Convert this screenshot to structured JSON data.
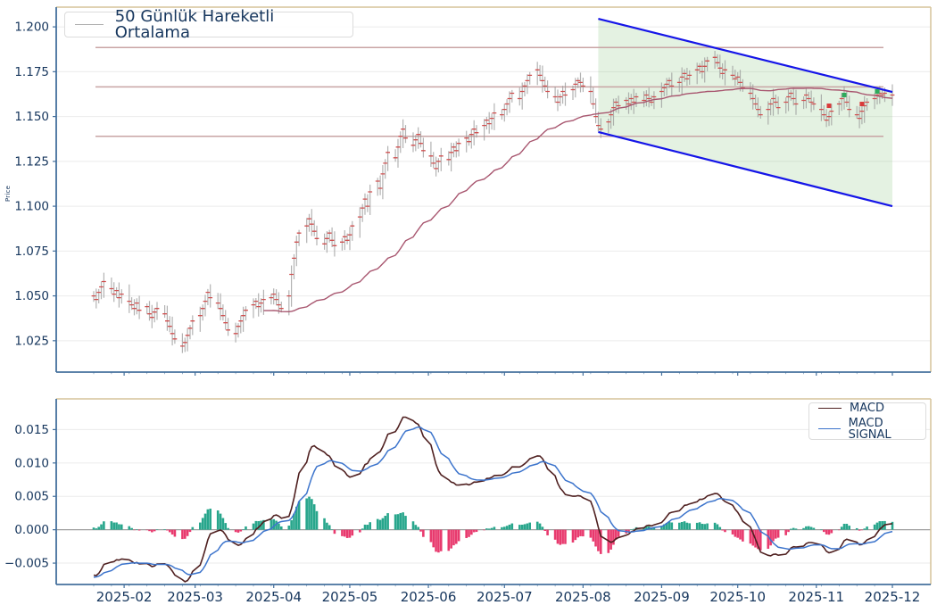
{
  "main_chart": {
    "ylabel": "Price",
    "legend_label": "50 Günlük Hareketli Ortalama",
    "ylim": [
      1.0075,
      1.211
    ],
    "y_ticks": [
      {
        "value": 1.025,
        "label": "1.025"
      },
      {
        "value": 1.05,
        "label": "1.050"
      },
      {
        "value": 1.075,
        "label": "1.075"
      },
      {
        "value": 1.1,
        "label": "1.100"
      },
      {
        "value": 1.125,
        "label": "1.125"
      },
      {
        "value": 1.15,
        "label": "1.150"
      },
      {
        "value": 1.175,
        "label": "1.175"
      },
      {
        "value": 1.2,
        "label": "1.200"
      }
    ]
  },
  "macd_panel": {
    "legend_macd_label": "MACD",
    "legend_signal_label": "MACD SIGNAL",
    "ylim": [
      -0.0082,
      0.0196
    ],
    "y_ticks": [
      {
        "value": -0.005,
        "label": "−0.005"
      },
      {
        "value": 0.0,
        "label": "0.000"
      },
      {
        "value": 0.005,
        "label": "0.005"
      },
      {
        "value": 0.01,
        "label": "0.010"
      },
      {
        "value": 0.015,
        "label": "0.015"
      }
    ]
  },
  "chart_data": {
    "type": "candlestick",
    "title": "",
    "xlabel": "",
    "ylabel": "Price",
    "start_date": "2025-01-20",
    "frequency": "weekdays",
    "close": [
      1.05,
      1.048,
      1.052,
      1.055,
      1.058,
      1.054,
      1.051,
      1.053,
      1.049,
      1.051,
      1.047,
      1.045,
      1.043,
      1.046,
      1.042,
      1.044,
      1.04,
      1.038,
      1.041,
      1.043,
      1.04,
      1.036,
      1.033,
      1.029,
      1.026,
      1.022,
      1.024,
      1.028,
      1.032,
      1.036,
      1.039,
      1.043,
      1.047,
      1.052,
      1.049,
      1.046,
      1.043,
      1.039,
      1.035,
      1.031,
      1.029,
      1.033,
      1.036,
      1.039,
      1.042,
      1.045,
      1.047,
      1.044,
      1.046,
      1.048,
      1.049,
      1.051,
      1.048,
      1.045,
      1.043,
      1.05,
      1.062,
      1.071,
      1.08,
      1.085,
      1.089,
      1.093,
      1.09,
      1.086,
      1.082,
      1.079,
      1.082,
      1.085,
      1.081,
      1.078,
      1.08,
      1.083,
      1.081,
      1.084,
      1.089,
      1.094,
      1.099,
      1.104,
      1.1,
      1.108,
      1.114,
      1.11,
      1.118,
      1.124,
      1.13,
      1.127,
      1.133,
      1.139,
      1.143,
      1.138,
      1.134,
      1.137,
      1.14,
      1.135,
      1.131,
      1.128,
      1.124,
      1.121,
      1.125,
      1.128,
      1.126,
      1.13,
      1.133,
      1.131,
      1.135,
      1.138,
      1.136,
      1.14,
      1.143,
      1.141,
      1.145,
      1.148,
      1.146,
      1.149,
      1.152,
      1.151,
      1.154,
      1.157,
      1.16,
      1.163,
      1.16,
      1.164,
      1.167,
      1.17,
      1.173,
      1.176,
      1.173,
      1.17,
      1.167,
      1.164,
      1.161,
      1.158,
      1.161,
      1.164,
      1.162,
      1.165,
      1.168,
      1.17,
      1.169,
      1.167,
      1.164,
      1.157,
      1.15,
      1.145,
      1.143,
      1.147,
      1.151,
      1.155,
      1.158,
      1.156,
      1.159,
      1.157,
      1.16,
      1.158,
      1.161,
      1.159,
      1.162,
      1.16,
      1.158,
      1.161,
      1.164,
      1.166,
      1.168,
      1.17,
      1.167,
      1.169,
      1.172,
      1.174,
      1.171,
      1.173,
      1.176,
      1.178,
      1.175,
      1.178,
      1.181,
      1.183,
      1.18,
      1.177,
      1.174,
      1.176,
      1.173,
      1.171,
      1.172,
      1.169,
      1.166,
      1.163,
      1.16,
      1.157,
      1.154,
      1.151,
      1.154,
      1.157,
      1.16,
      1.158,
      1.155,
      1.158,
      1.161,
      1.163,
      1.16,
      1.157,
      1.159,
      1.162,
      1.16,
      1.158,
      1.157,
      1.154,
      1.151,
      1.148,
      1.15,
      1.153,
      1.157,
      1.16,
      1.162,
      1.158,
      1.154,
      1.151,
      1.149,
      1.153,
      1.156,
      1.158,
      1.16,
      1.162,
      1.163,
      1.162,
      1.163,
      1.162
    ],
    "bar_range_pattern": [
      0.006,
      0.009,
      0.004,
      0.007,
      0.011,
      0.005,
      0.008,
      0.004,
      0.01,
      0.006,
      0.012,
      0.005,
      0.007
    ],
    "indicators": {
      "ma_window": 50,
      "macd": {
        "fast": 12,
        "slow": 26,
        "signal": 9
      },
      "seeds": {
        "ema_fast": 1.0562,
        "ema_slow": 1.063,
        "signal": -0.0072
      }
    },
    "hlines": [
      1.1885,
      1.1665,
      1.139
    ],
    "channel": {
      "start_date": "2025-08-07",
      "end_date": "2025-12-01",
      "top_start": 1.2045,
      "top_end": 1.1637,
      "bottom_start": 1.1414,
      "bottom_end": 1.1
    },
    "signals": {
      "sell": [
        {
          "date": "2025-11-06",
          "price": 1.156
        },
        {
          "date": "2025-11-19",
          "price": 1.157
        }
      ],
      "buy": [
        {
          "date": "2025-11-12",
          "price": 1.162
        },
        {
          "date": "2025-11-25",
          "price": 1.164
        }
      ]
    },
    "x_month_ticks": [
      {
        "date": "2025-02-01",
        "label": "2025-02"
      },
      {
        "date": "2025-03-01",
        "label": "2025-03"
      },
      {
        "date": "2025-04-01",
        "label": "2025-04"
      },
      {
        "date": "2025-05-01",
        "label": "2025-05"
      },
      {
        "date": "2025-06-01",
        "label": "2025-06"
      },
      {
        "date": "2025-07-01",
        "label": "2025-07"
      },
      {
        "date": "2025-08-01",
        "label": "2025-08"
      },
      {
        "date": "2025-09-01",
        "label": "2025-09"
      },
      {
        "date": "2025-10-01",
        "label": "2025-10"
      },
      {
        "date": "2025-11-01",
        "label": "2025-11"
      },
      {
        "date": "2025-12-01",
        "label": "2025-12"
      }
    ]
  },
  "colors": {
    "bar": "#9a9a9a",
    "close_tick": "#d05050",
    "ma_line": "#a8566f",
    "hline": "#c8a4a4",
    "channel_line": "#1515e8",
    "channel_fill": "rgba(120,190,110,0.20)",
    "macd_line": "#4f2020",
    "signal_line": "#3c74cc",
    "hist_pos": "#28a68c",
    "hist_neg": "#e83a6e",
    "tick_label": "#16365d",
    "spine_dark": "#44709d",
    "spine_tan": "#d6c49a",
    "grid": "#ebebeb",
    "zero_line": "#a0a0a0",
    "legend_sample": "#b0b0b0",
    "marker_buy": "#2daa5c",
    "marker_sell": "#d93a3a"
  }
}
